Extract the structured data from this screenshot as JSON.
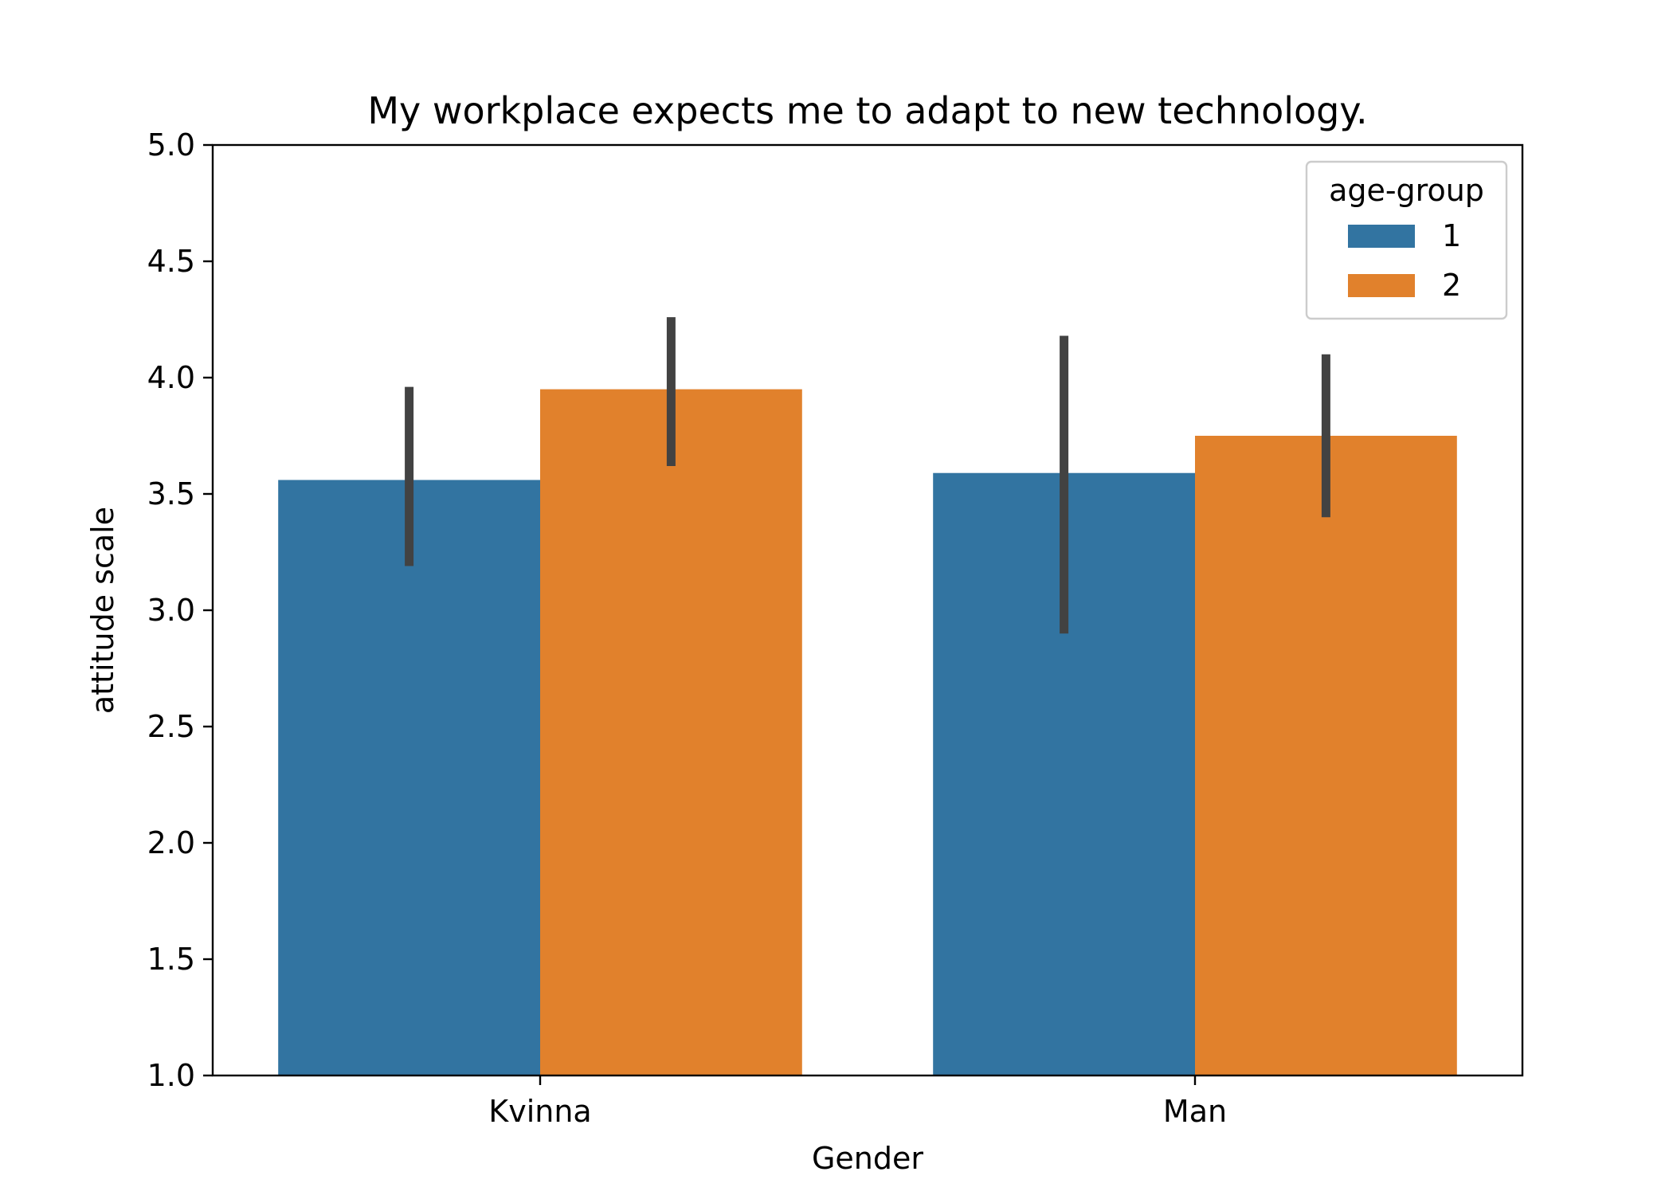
{
  "chart_data": {
    "type": "bar",
    "title": "My workplace expects me to adapt to new technology.",
    "xlabel": "Gender",
    "ylabel": "attitude scale",
    "categories": [
      "Kvinna",
      "Man"
    ],
    "ylim": [
      1.0,
      5.0
    ],
    "yticks": [
      "1.0",
      "1.5",
      "2.0",
      "2.5",
      "3.0",
      "3.5",
      "4.0",
      "4.5",
      "5.0"
    ],
    "grid": false,
    "legend": {
      "title": "age-group",
      "placement": "top-right"
    },
    "series": [
      {
        "name": "1",
        "color": "#3274a1",
        "values": [
          3.56,
          3.59
        ],
        "error_low": [
          3.19,
          2.9
        ],
        "error_high": [
          3.96,
          4.18
        ]
      },
      {
        "name": "2",
        "color": "#e1812c",
        "values": [
          3.95,
          3.75
        ],
        "error_low": [
          3.62,
          3.4
        ],
        "error_high": [
          4.26,
          4.1
        ]
      }
    ],
    "errorbar_color": "#424242"
  }
}
